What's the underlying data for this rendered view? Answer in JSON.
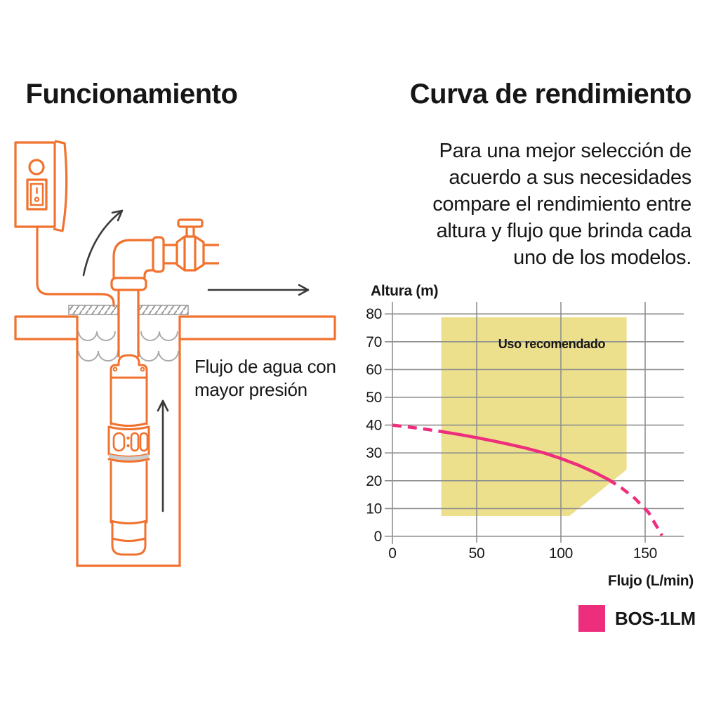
{
  "left": {
    "title": "Funcionamiento",
    "caption": "Flujo de agua con\nmayor presión"
  },
  "right": {
    "title": "Curva de rendimiento",
    "description": "Para una mejor selección de\nacuerdo a sus necesidades\ncompare el rendimiento entre\naltura y flujo que brinda cada\nuno de los modelos."
  },
  "chart_data": {
    "type": "line",
    "xlabel": "Flujo (L/min)",
    "ylabel": "Altura (m)",
    "xlim": [
      0,
      173
    ],
    "ylim": [
      0,
      84
    ],
    "xticks": [
      0,
      50,
      100,
      150
    ],
    "yticks": [
      0,
      10,
      20,
      30,
      40,
      50,
      60,
      70,
      80
    ],
    "grid": true,
    "legend_position": "bottom-right",
    "recommended_zone": {
      "label": "Uso recomendado",
      "polygon": [
        [
          29,
          78.8
        ],
        [
          139,
          78.8
        ],
        [
          139,
          24
        ],
        [
          105,
          7.3
        ],
        [
          29,
          7.3
        ]
      ],
      "color": "#EDE08C"
    },
    "series": [
      {
        "name": "BOS-1LM",
        "color": "#ED2E7C",
        "segments": [
          {
            "style": "dashed",
            "points": [
              [
                0,
                40
              ],
              [
                10,
                39.3
              ],
              [
                20,
                38.5
              ],
              [
                30,
                37.6
              ]
            ]
          },
          {
            "style": "solid",
            "points": [
              [
                30,
                37.6
              ],
              [
                40,
                36.6
              ],
              [
                50,
                35.5
              ],
              [
                60,
                34.3
              ],
              [
                70,
                33
              ],
              [
                80,
                31.6
              ],
              [
                90,
                30
              ],
              [
                100,
                28
              ],
              [
                110,
                25.7
              ],
              [
                120,
                23
              ],
              [
                128,
                20.5
              ]
            ]
          },
          {
            "style": "dashed",
            "points": [
              [
                128,
                20.5
              ],
              [
                136,
                17.4
              ],
              [
                144,
                13.6
              ],
              [
                152,
                8.6
              ],
              [
                160,
                0.3
              ]
            ]
          }
        ]
      }
    ],
    "legend": [
      {
        "label": "BOS-1LM",
        "color": "#ED2E7C"
      }
    ]
  },
  "colors": {
    "accent_orange": "#F1722E",
    "curve_pink": "#ED2E7C",
    "zone_yellow": "#EDE08C",
    "grid_gray": "#8F8F8F",
    "text_black": "#161616"
  }
}
